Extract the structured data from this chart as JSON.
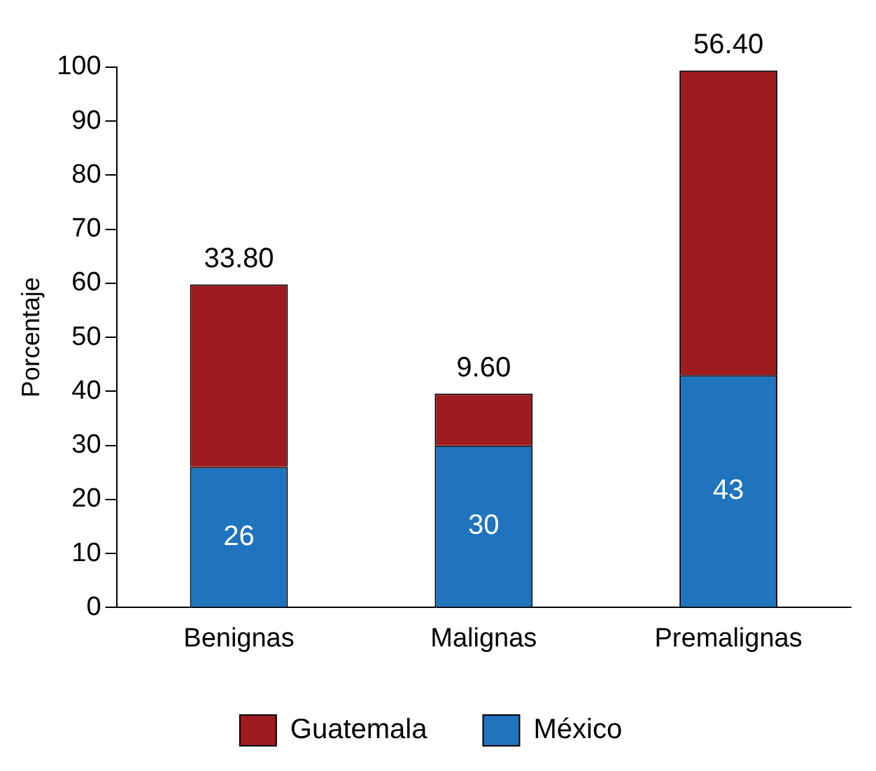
{
  "chart_data": {
    "type": "bar",
    "stacked": true,
    "ylabel": "Porcentaje",
    "categories": [
      "Benignas",
      "Malignas",
      "Premalignas"
    ],
    "series": [
      {
        "name": "México",
        "color": "#1f74bd",
        "values": [
          26,
          30,
          43
        ],
        "value_labels": [
          "26",
          "30",
          "43"
        ]
      },
      {
        "name": "Guatemala",
        "color": "#9e1b20",
        "values": [
          33.8,
          9.6,
          56.4
        ],
        "value_labels": [
          "33.80",
          "9.60",
          "56.40"
        ]
      }
    ],
    "ylim": [
      0,
      100
    ],
    "yticks": [
      0,
      10,
      20,
      30,
      40,
      50,
      60,
      70,
      80,
      90,
      100
    ],
    "grid": false,
    "legend": "bottom"
  }
}
